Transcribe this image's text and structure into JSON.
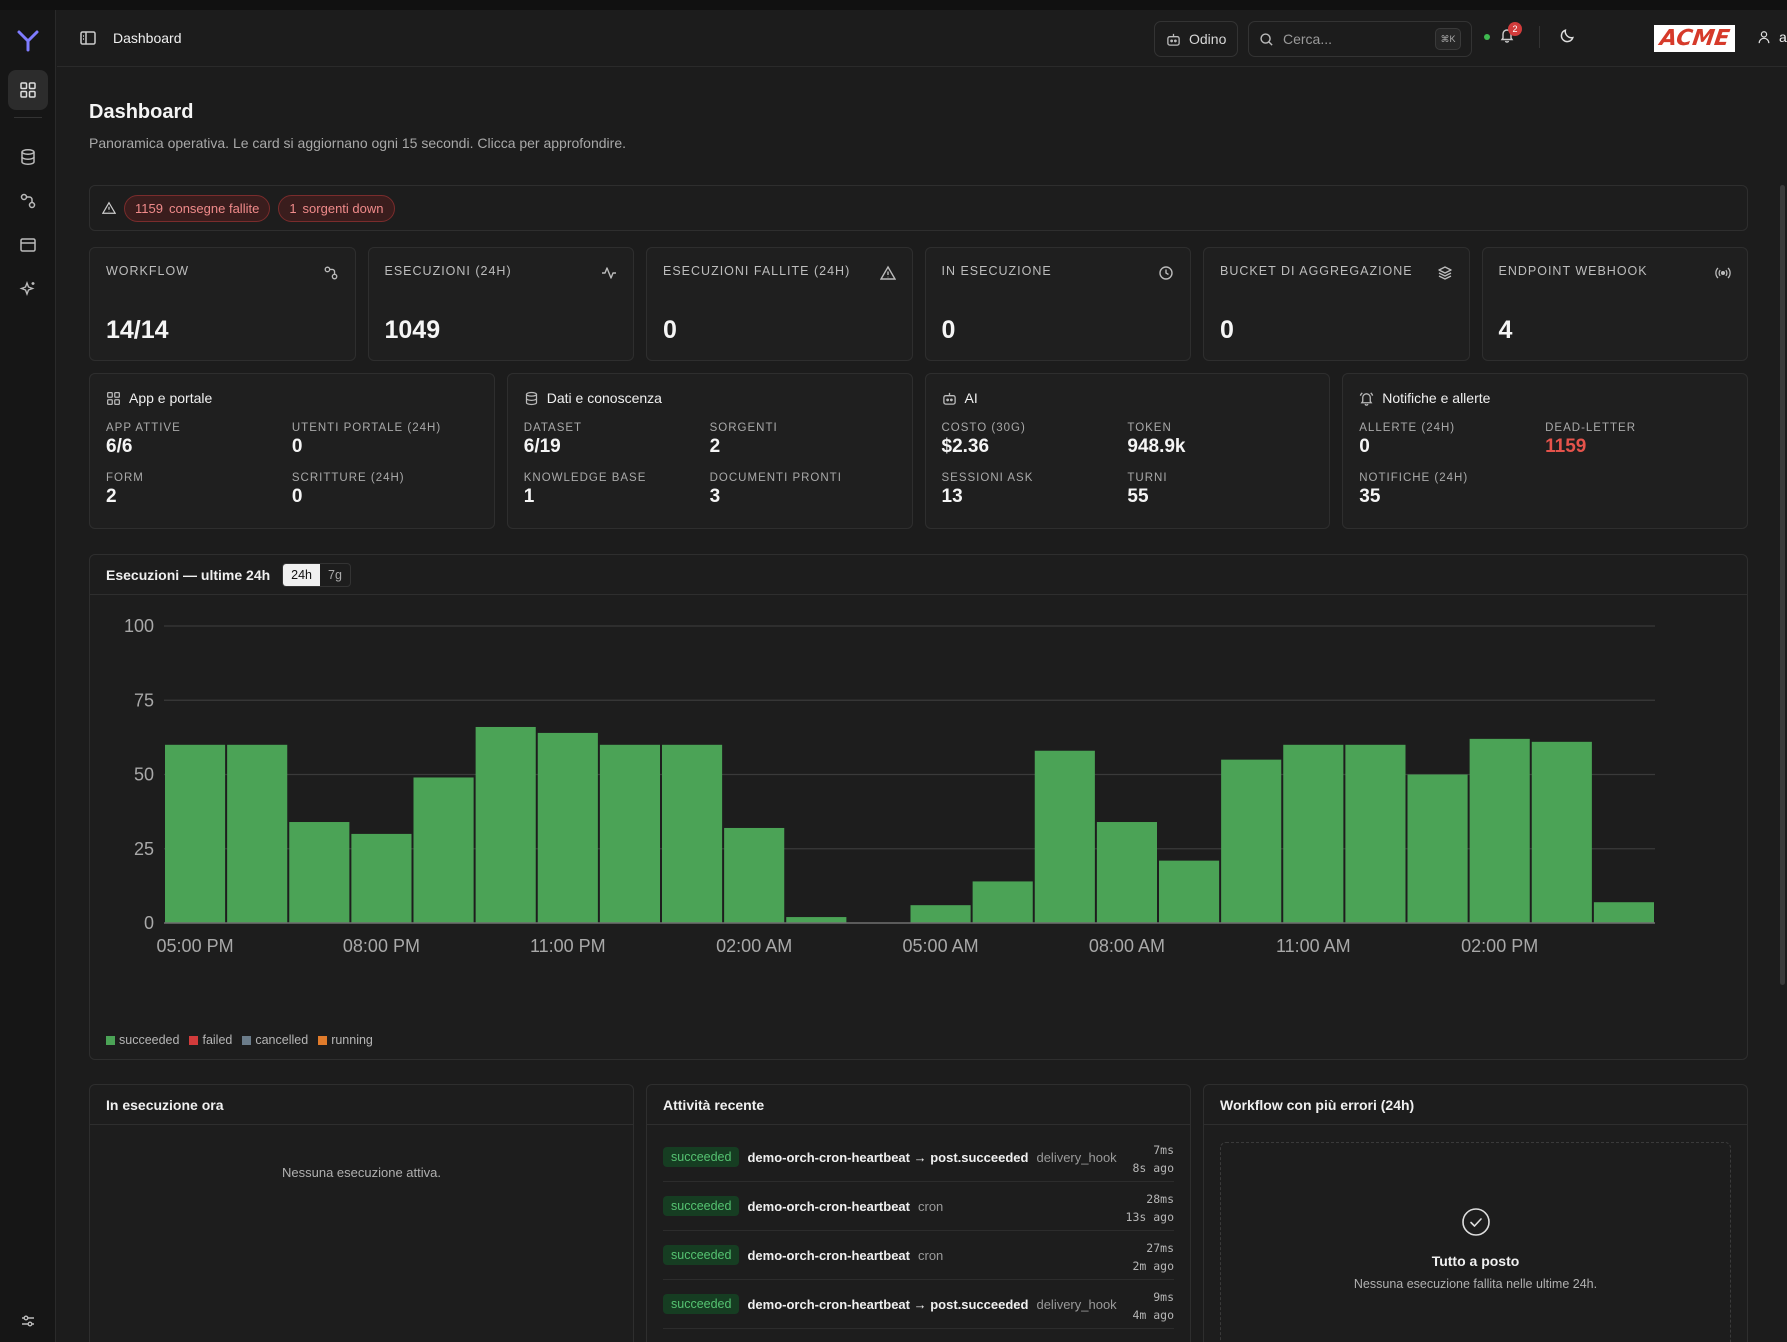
{
  "header": {
    "breadcrumb": "Dashboard",
    "odino_label": "Odino",
    "search_placeholder": "Cerca...",
    "search_shortcut": "⌘K",
    "notifications_count": "2",
    "brand_logo": "ACME",
    "user_name": "admin"
  },
  "page": {
    "title": "Dashboard",
    "subtitle": "Panoramica operativa. Le card si aggiornano ogni 15 secondi. Clicca per approfondire."
  },
  "alerts": [
    {
      "count": "1159",
      "label": "consegne fallite"
    },
    {
      "count": "1",
      "label": "sorgenti down"
    }
  ],
  "kpis": [
    {
      "label": "WORKFLOW",
      "value": "14/14",
      "icon": "workflow-icon"
    },
    {
      "label": "ESECUZIONI (24H)",
      "value": "1049",
      "icon": "activity-icon"
    },
    {
      "label": "ESECUZIONI FALLITE (24H)",
      "value": "0",
      "icon": "warning-icon"
    },
    {
      "label": "IN ESECUZIONE",
      "value": "0",
      "icon": "clock-icon"
    },
    {
      "label": "BUCKET DI AGGREGAZIONE",
      "value": "0",
      "icon": "layers-icon"
    },
    {
      "label": "ENDPOINT WEBHOOK",
      "value": "4",
      "icon": "broadcast-icon"
    }
  ],
  "groups": [
    {
      "title": "App e portale",
      "icon": "grid-icon",
      "cells": [
        {
          "label": "APP ATTIVE",
          "value": "6/6"
        },
        {
          "label": "UTENTI PORTALE (24H)",
          "value": "0"
        },
        {
          "label": "FORM",
          "value": "2"
        },
        {
          "label": "SCRITTURE (24H)",
          "value": "0"
        }
      ]
    },
    {
      "title": "Dati e conoscenza",
      "icon": "database-icon",
      "cells": [
        {
          "label": "DATASET",
          "value": "6/19"
        },
        {
          "label": "SORGENTI",
          "value": "2"
        },
        {
          "label": "KNOWLEDGE BASE",
          "value": "1"
        },
        {
          "label": "DOCUMENTI PRONTI",
          "value": "3"
        }
      ]
    },
    {
      "title": "AI",
      "icon": "bot-icon",
      "cells": [
        {
          "label": "COSTO (30G)",
          "value": "$2.36"
        },
        {
          "label": "TOKEN",
          "value": "948.9k"
        },
        {
          "label": "SESSIONI ASK",
          "value": "13"
        },
        {
          "label": "TURNI",
          "value": "55"
        }
      ]
    },
    {
      "title": "Notifiche e allerte",
      "icon": "bell-ring-icon",
      "cells": [
        {
          "label": "ALLERTE (24H)",
          "value": "0"
        },
        {
          "label": "DEAD-LETTER",
          "value": "1159",
          "color": "#e5534b"
        },
        {
          "label": "NOTIFICHE (24H)",
          "value": "35"
        },
        {
          "label": "",
          "value": ""
        }
      ]
    }
  ],
  "chart_section": {
    "title": "Esecuzioni — ultime 24h",
    "range_options": [
      "24h",
      "7g"
    ],
    "range_selected": "24h"
  },
  "chart_data": {
    "type": "bar",
    "stacked": true,
    "ylim": [
      0,
      100
    ],
    "yticks": [
      0,
      25,
      50,
      75,
      100
    ],
    "xtick_labels": [
      "05:00 PM",
      "08:00 PM",
      "11:00 PM",
      "02:00 AM",
      "05:00 AM",
      "08:00 AM",
      "11:00 AM",
      "02:00 PM"
    ],
    "xtick_every": 3,
    "grid": true,
    "legend_position": "bottom-left",
    "series": [
      {
        "name": "succeeded",
        "color": "#4ba356",
        "values": [
          60,
          60,
          34,
          30,
          49,
          66,
          64,
          60,
          60,
          32,
          2,
          0,
          6,
          14,
          58,
          34,
          21,
          55,
          60,
          60,
          50,
          62,
          61,
          7
        ]
      },
      {
        "name": "failed",
        "color": "#d23b3b",
        "values": [
          0,
          0,
          0,
          0,
          0,
          0,
          0,
          0,
          0,
          0,
          0,
          0,
          0,
          0,
          0,
          0,
          0,
          0,
          0,
          0,
          0,
          0,
          0,
          0
        ]
      },
      {
        "name": "cancelled",
        "color": "#6b7c8a",
        "values": [
          0,
          0,
          0,
          0,
          0,
          0,
          0,
          0,
          0,
          0,
          0,
          0,
          0,
          0,
          0,
          0,
          0,
          0,
          0,
          0,
          0,
          0,
          0,
          0
        ]
      },
      {
        "name": "running",
        "color": "#e07b2b",
        "values": [
          0,
          0,
          0,
          0,
          0,
          0,
          0,
          0,
          0,
          0,
          0,
          0,
          0,
          0,
          0,
          0,
          0,
          0,
          0,
          0,
          0,
          0,
          0,
          0
        ]
      }
    ]
  },
  "running_now": {
    "title": "In esecuzione ora",
    "empty": "Nessuna esecuzione attiva."
  },
  "recent_activity": {
    "title": "Attività recente",
    "items": [
      {
        "status": "succeeded",
        "name": "demo-orch-cron-heartbeat → post.succeeded",
        "tag": "delivery_hook",
        "duration": "7ms",
        "ago": "8s ago"
      },
      {
        "status": "succeeded",
        "name": "demo-orch-cron-heartbeat",
        "tag": "cron",
        "duration": "28ms",
        "ago": "13s ago"
      },
      {
        "status": "succeeded",
        "name": "demo-orch-cron-heartbeat",
        "tag": "cron",
        "duration": "27ms",
        "ago": "2m ago"
      },
      {
        "status": "succeeded",
        "name": "demo-orch-cron-heartbeat → post.succeeded",
        "tag": "delivery_hook",
        "duration": "9ms",
        "ago": "4m ago"
      }
    ]
  },
  "top_errors": {
    "title": "Workflow con più errori (24h)",
    "ok_title": "Tutto a posto",
    "ok_sub": "Nessuna esecuzione fallita nelle ultime 24h."
  },
  "colors": {
    "accent": "#7f7cff",
    "success": "#4ba356",
    "danger": "#e5534b"
  }
}
